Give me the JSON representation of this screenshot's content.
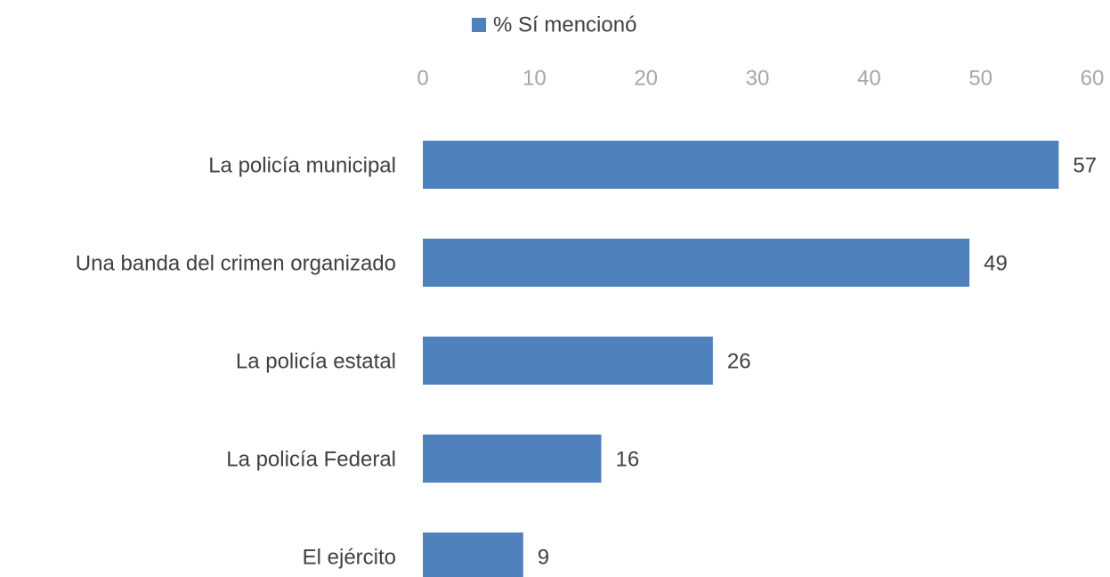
{
  "chart_data": {
    "type": "bar",
    "orientation": "horizontal",
    "categories": [
      "La policía municipal",
      "Una banda del crimen organizado",
      "La policía estatal",
      "La policía Federal",
      "El ejército"
    ],
    "series": [
      {
        "name": "% Sí mencionó",
        "color": "#4f81bd",
        "values": [
          57,
          49,
          26,
          16,
          9
        ]
      }
    ],
    "xlim": [
      0,
      60
    ],
    "xticks": [
      0,
      10,
      20,
      30,
      40,
      50,
      60
    ],
    "grid": false,
    "legend": "top"
  }
}
